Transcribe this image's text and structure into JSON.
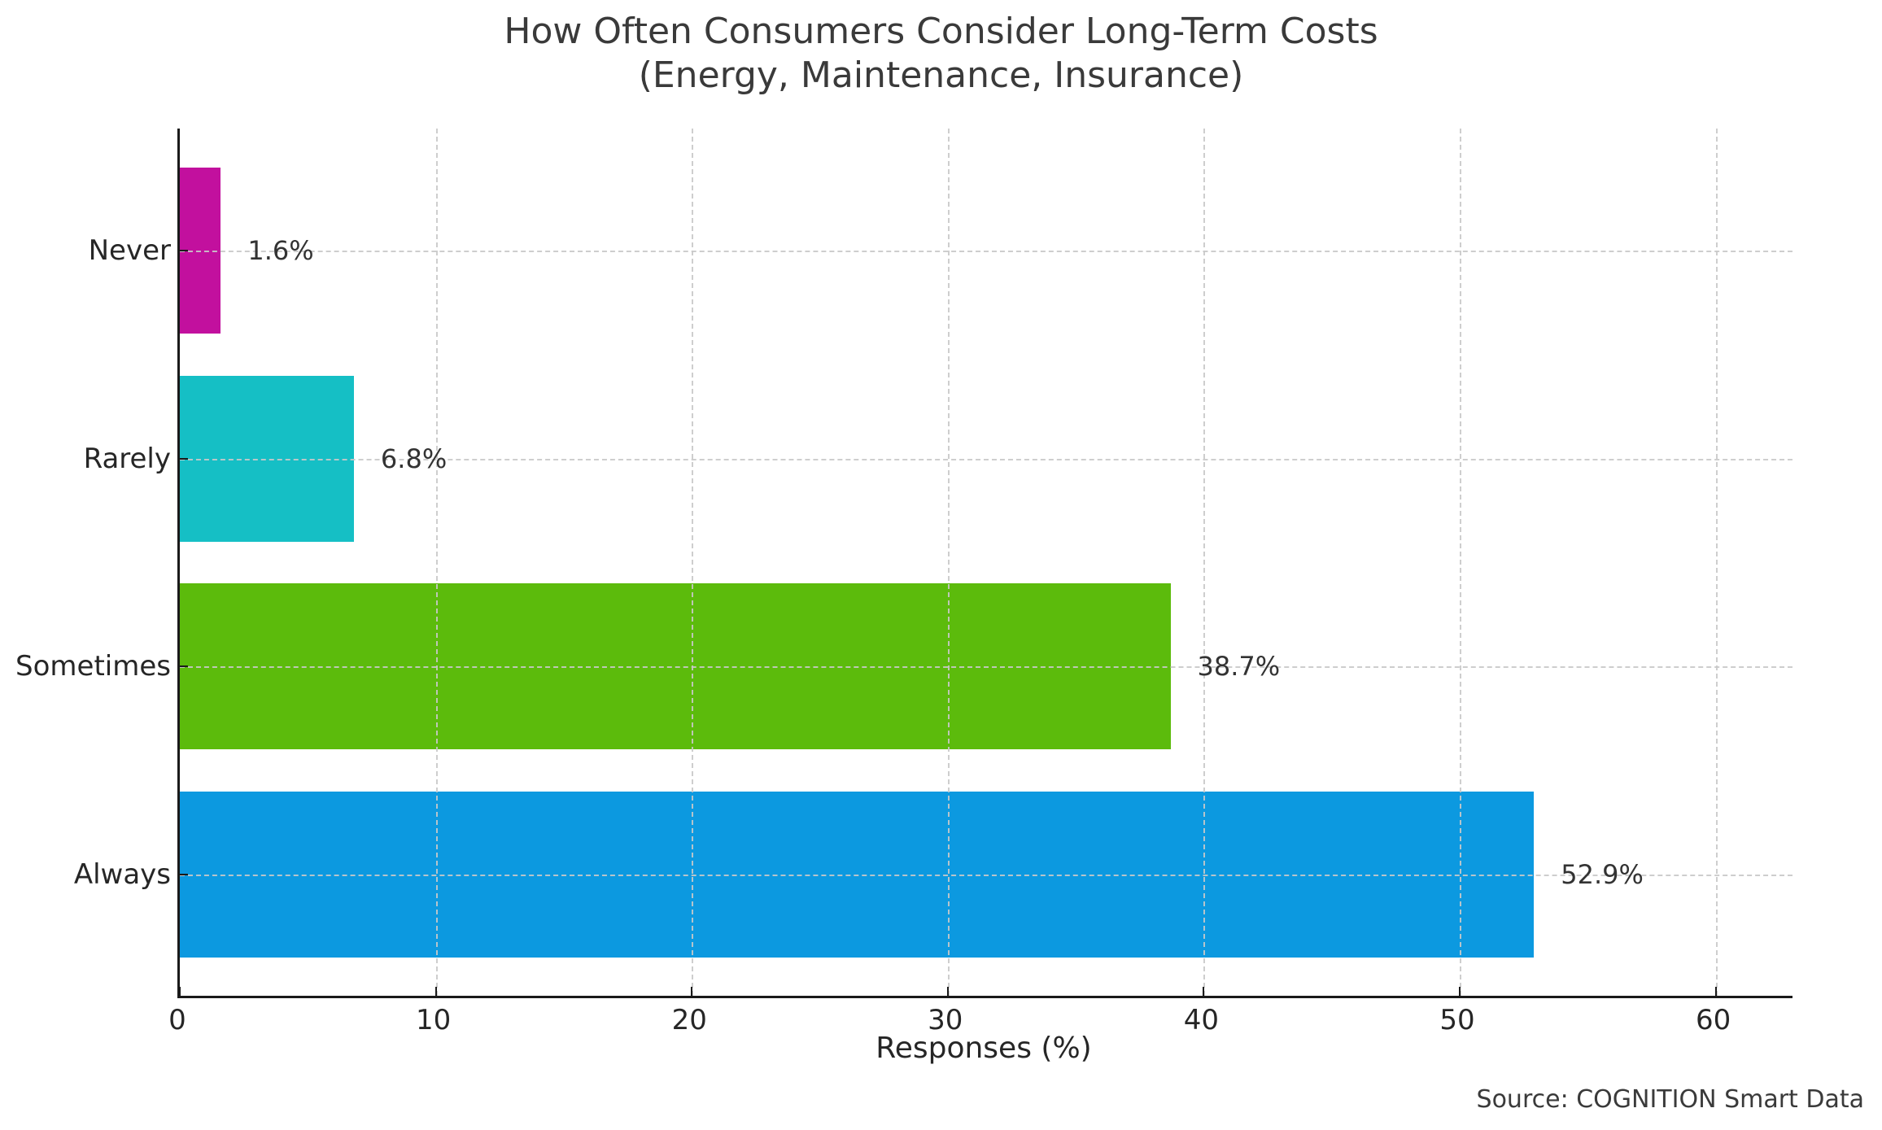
{
  "figure": {
    "title": "How Often Consumers Consider Long-Term Costs",
    "subtitle": "(Energy, Maintenance, Insurance)",
    "source": "Source: COGNITION Smart Data"
  },
  "chart_data": {
    "type": "bar",
    "orientation": "horizontal",
    "categories": [
      "Never",
      "Rarely",
      "Sometimes",
      "Always"
    ],
    "values": [
      1.6,
      6.8,
      38.7,
      52.9
    ],
    "value_labels": [
      "1.6%",
      "6.8%",
      "38.7%",
      "52.9%"
    ],
    "bar_colors": [
      "#c2109e",
      "#15bfc5",
      "#5cbb0c",
      "#0c99e0"
    ],
    "title": "How Often Consumers Consider Long-Term Costs",
    "subtitle": "(Energy, Maintenance, Insurance)",
    "xlabel": "Responses (%)",
    "ylabel": "",
    "xlim": [
      0,
      63
    ],
    "xticks": [
      0,
      10,
      20,
      30,
      40,
      50,
      60
    ],
    "grid": true,
    "grid_style": "dashed",
    "legend": false,
    "spine_color": "#1a1a1a",
    "grid_color": "#c9c9c9",
    "source": "Source: COGNITION Smart Data"
  }
}
